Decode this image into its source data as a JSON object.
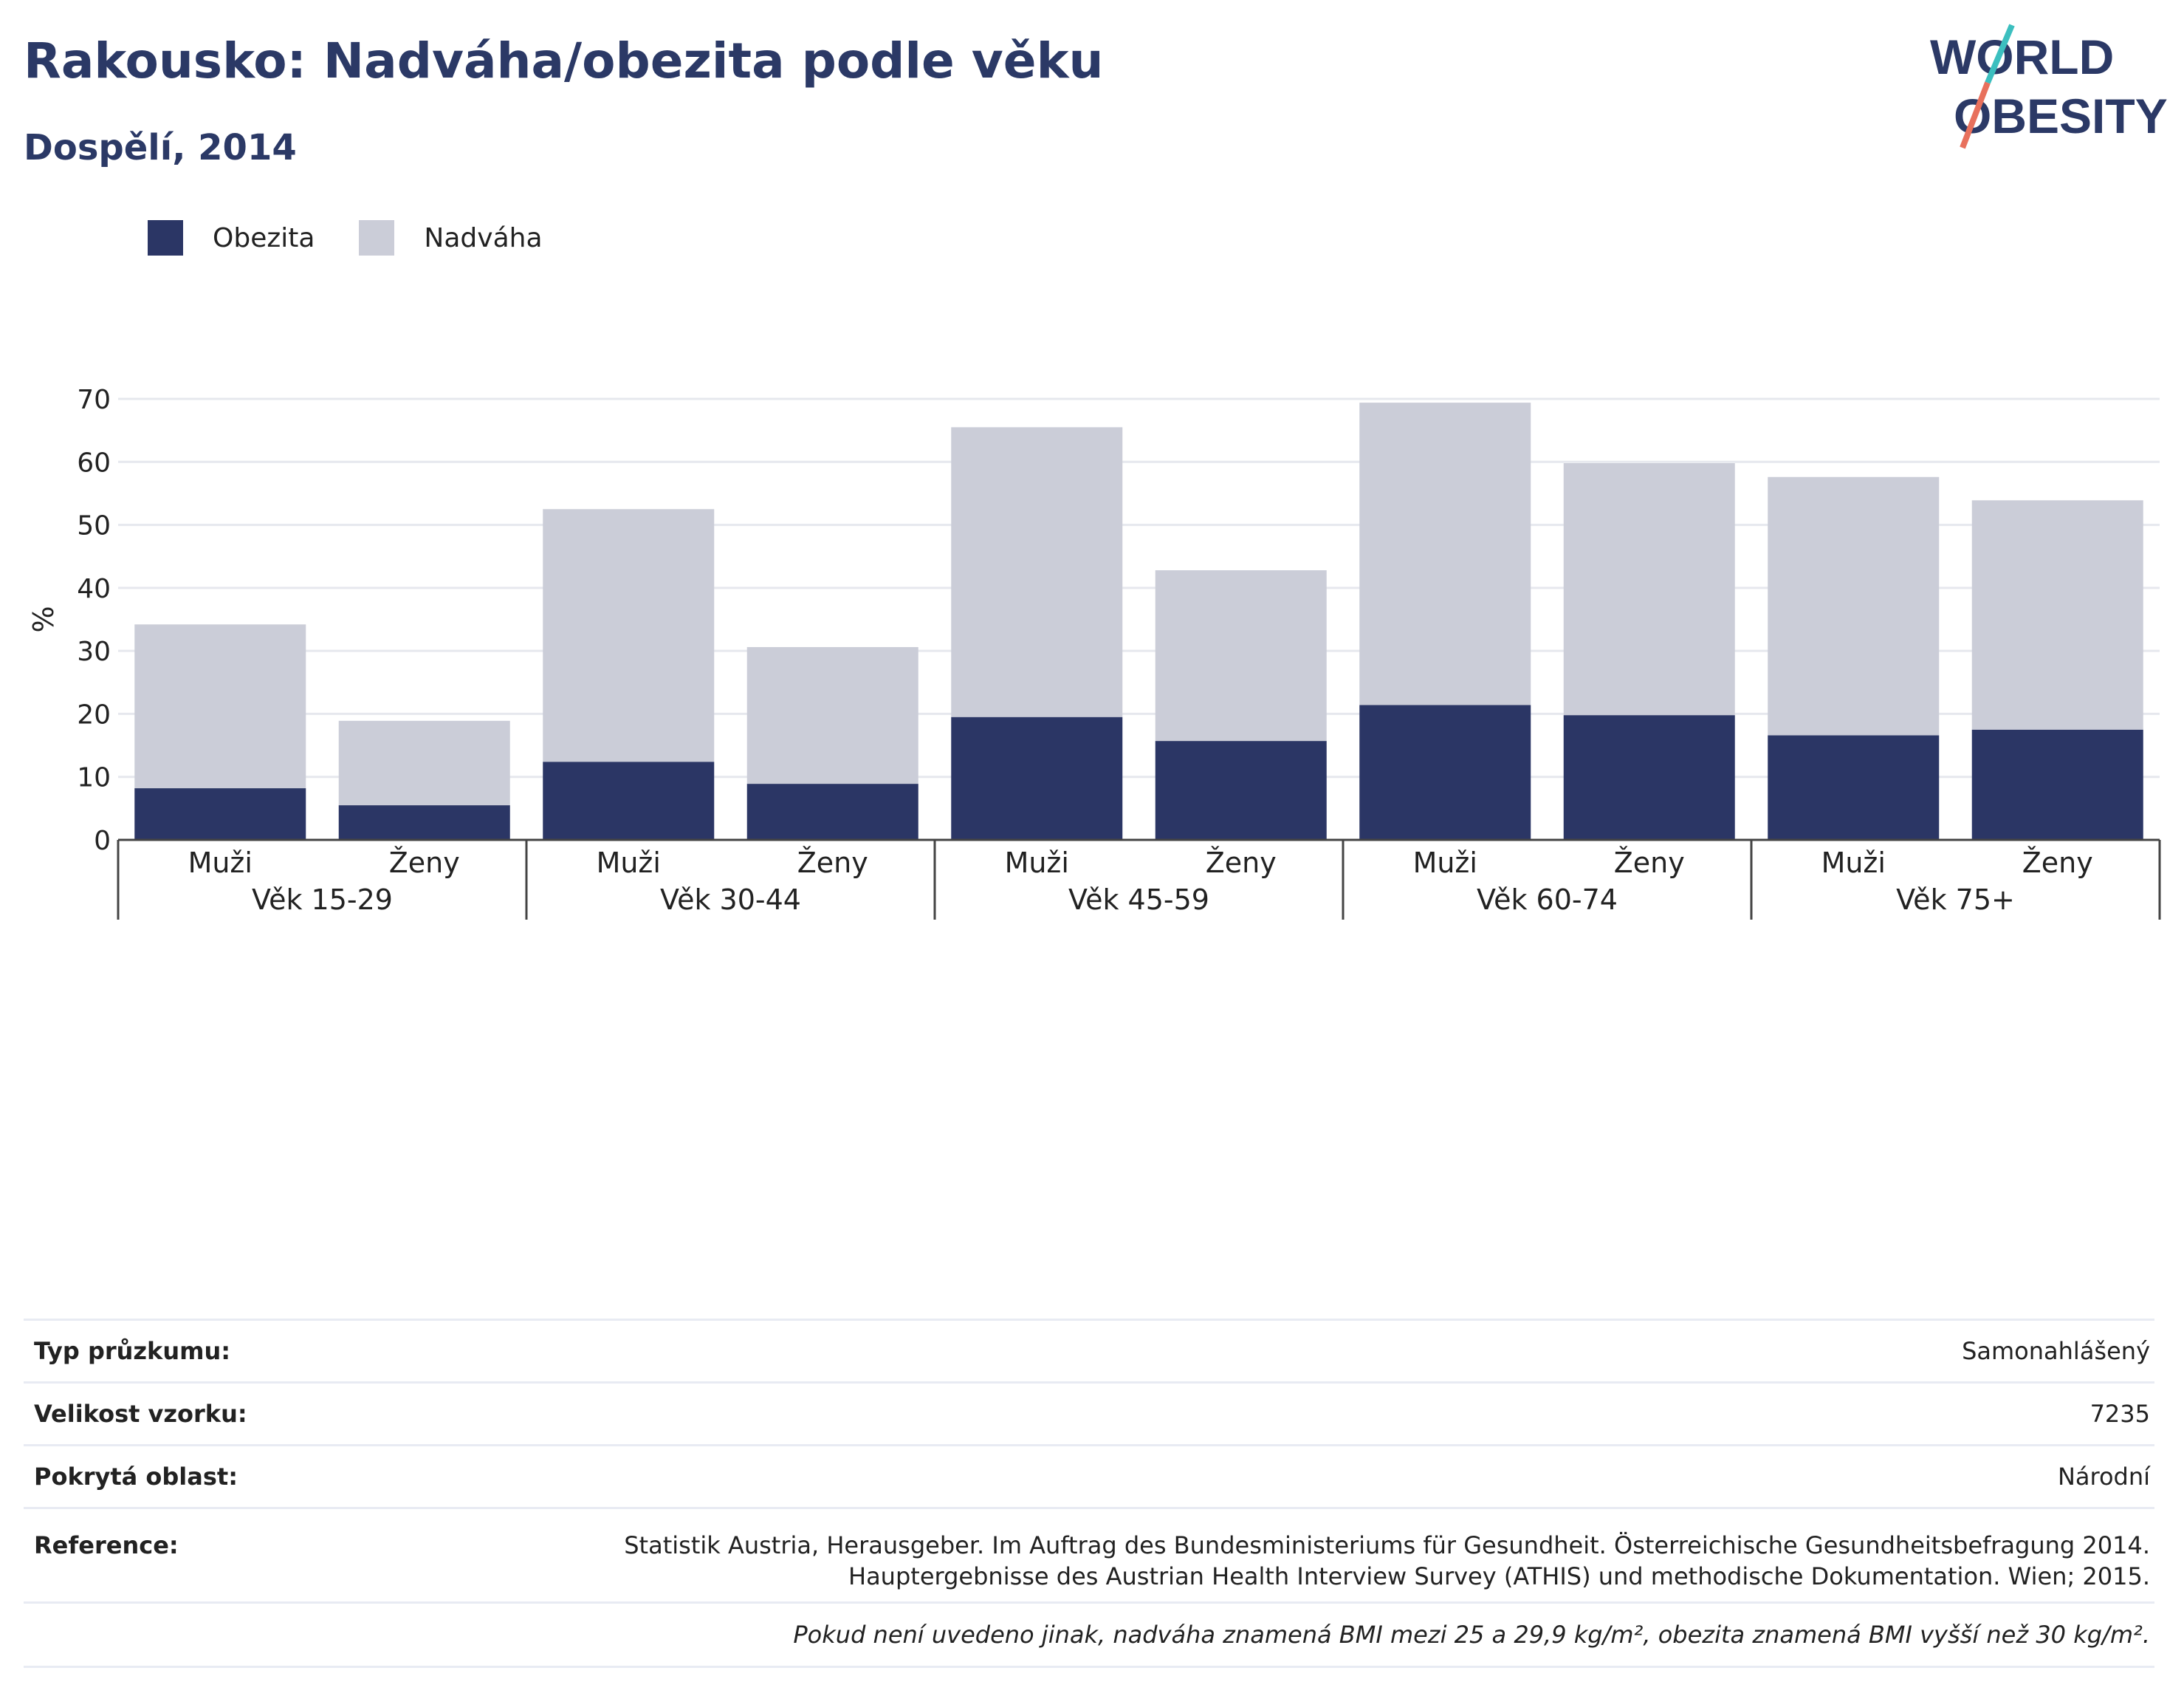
{
  "header": {
    "title": "Rakousko: Nadváha/obezita podle věku",
    "subtitle": "Dospělí, 2014"
  },
  "logo": {
    "line1": "WORLD",
    "line2": "OBESITY"
  },
  "legend": {
    "obesity_label": "Obezita",
    "overweight_label": "Nadváha"
  },
  "colors": {
    "obesity": "#2b3665",
    "overweight": "#cbcdd8",
    "grid": "#e6e8ee",
    "axis": "#444444"
  },
  "chart_data": {
    "type": "bar",
    "stacked": true,
    "ylabel": "%",
    "ylim": [
      0,
      70
    ],
    "yticks": [
      0,
      10,
      20,
      30,
      40,
      50,
      60,
      70
    ],
    "groups": [
      "Věk 15-29",
      "Věk 30-44",
      "Věk 45-59",
      "Věk 60-74",
      "Věk 75+"
    ],
    "categories": [
      "Muži",
      "Ženy",
      "Muži",
      "Ženy",
      "Muži",
      "Ženy",
      "Muži",
      "Ženy",
      "Muži",
      "Ženy"
    ],
    "series": [
      {
        "name": "Obezita",
        "values": [
          8.2,
          5.5,
          12.4,
          8.9,
          19.5,
          15.7,
          21.4,
          19.8,
          16.6,
          17.5
        ]
      },
      {
        "name": "Nadváha",
        "values": [
          26.0,
          13.4,
          40.1,
          21.7,
          46.0,
          27.1,
          48.0,
          40.0,
          41.0,
          36.4
        ]
      }
    ],
    "totals": [
      34.2,
      18.9,
      52.5,
      30.6,
      65.5,
      42.8,
      69.4,
      59.8,
      57.6,
      53.9
    ],
    "grid": true,
    "legend_position": "top-left"
  },
  "info": {
    "rows": [
      {
        "key": "Typ průzkumu:",
        "value": "Samonahlášený"
      },
      {
        "key": "Velikost vzorku:",
        "value": "7235"
      },
      {
        "key": "Pokrytá oblast:",
        "value": "Národní"
      }
    ],
    "reference_key": "Reference:",
    "reference_line1": "Statistik Austria, Herausgeber. Im Auftrag des Bundesministeriums für Gesundheit. Österreichische Gesundheitsbefragung 2014.",
    "reference_line2": "Hauptergebnisse des Austrian Health Interview Survey (ATHIS) und methodische Dokumentation. Wien; 2015.",
    "note": "Pokud není uvedeno jinak, nadváha znamená BMI mezi 25 a 29,9 kg/m², obezita znamená BMI vyšší než 30 kg/m²."
  }
}
